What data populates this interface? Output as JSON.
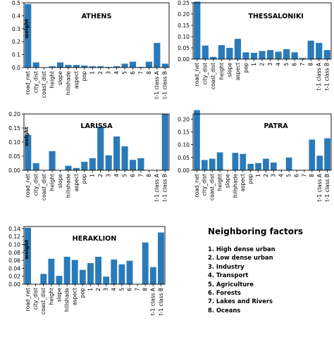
{
  "chart_data": [
    {
      "type": "bar",
      "title": "ATHENS",
      "ylabel": "weight",
      "ylim": [
        0,
        0.5
      ],
      "yticks": [
        "0.0",
        "0.1",
        "0.2",
        "0.3",
        "0.4",
        "0.5"
      ],
      "categories": [
        "road_net",
        "city_dist",
        "coast_dist",
        "height",
        "slope",
        "hillshade",
        "aspect",
        "pop",
        "1",
        "2",
        "3",
        "4",
        "5",
        "6",
        "7",
        "8",
        "t-1 class A",
        "t-1 class B"
      ],
      "values": [
        0.49,
        0.04,
        0.0,
        0.01,
        0.04,
        0.02,
        0.02,
        0.015,
        0.01,
        0.01,
        0.005,
        0.01,
        0.03,
        0.045,
        0.005,
        0.045,
        0.19,
        0.03
      ],
      "color": "#2a7ab9"
    },
    {
      "type": "bar",
      "title": "THESSALONIKI",
      "ylabel": "",
      "ylim": [
        0,
        0.25
      ],
      "yticks": [
        "0.00",
        "0.05",
        "0.10",
        "0.15",
        "0.20",
        "0.25"
      ],
      "categories": [
        "road_net",
        "city_dist",
        "coast_dist",
        "height",
        "slope",
        "aspect",
        "pop",
        "1",
        "2",
        "3",
        "4",
        "5",
        "6",
        "7",
        "8",
        "t-1 class A",
        "t-1 class B"
      ],
      "values": [
        0.255,
        0.06,
        0.01,
        0.062,
        0.05,
        0.09,
        0.03,
        0.028,
        0.036,
        0.04,
        0.033,
        0.044,
        0.03,
        0.005,
        0.082,
        0.072,
        0.04
      ],
      "color": "#2a7ab9"
    },
    {
      "type": "bar",
      "title": "LARISSA",
      "ylabel": "weight",
      "ylim": [
        0,
        0.2
      ],
      "yticks": [
        "0.00",
        "0.05",
        "0.10",
        "0.15",
        "0.20"
      ],
      "categories": [
        "road_net",
        "city_dist",
        "coast_dist",
        "height",
        "slope",
        "hillshade",
        "aspect",
        "pop",
        "1",
        "2",
        "3",
        "4",
        "5",
        "6",
        "7",
        "8",
        "t-1 class A",
        "t-1 class B"
      ],
      "values": [
        0.125,
        0.025,
        0.0,
        0.068,
        0.0,
        0.016,
        0.008,
        0.03,
        0.043,
        0.155,
        0.053,
        0.12,
        0.085,
        0.037,
        0.043,
        0.0,
        0.0,
        0.2
      ],
      "color": "#2a7ab9"
    },
    {
      "type": "bar",
      "title": "PATRA",
      "ylabel": "",
      "ylim": [
        0,
        0.22
      ],
      "yticks": [
        "0.00",
        "0.05",
        "0.10",
        "0.15",
        "0.20"
      ],
      "categories": [
        "road_net",
        "city_dist",
        "coast_dist",
        "height",
        "slope",
        "hillshade",
        "aspect",
        "pop",
        "1",
        "2",
        "3",
        "4",
        "5",
        "6",
        "7",
        "8",
        "t-1 class A",
        "t-1 class B"
      ],
      "values": [
        0.235,
        0.04,
        0.045,
        0.07,
        0.0,
        0.068,
        0.064,
        0.025,
        0.028,
        0.045,
        0.03,
        0.0,
        0.05,
        0.0,
        0.0,
        0.12,
        0.057,
        0.125
      ],
      "color": "#2a7ab9"
    },
    {
      "type": "bar",
      "title": "HERAKLION",
      "ylabel": "weight",
      "ylim": [
        0,
        0.145
      ],
      "yticks": [
        "0.00",
        "0.02",
        "0.04",
        "0.06",
        "0.08",
        "0.10",
        "0.12",
        "0.14"
      ],
      "categories": [
        "road_net",
        "city_dist",
        "coast_dist",
        "height",
        "slope",
        "hillshade",
        "aspect",
        "pop",
        "1",
        "2",
        "3",
        "4",
        "5",
        "6",
        "7",
        "8",
        "t-1 class A",
        "t-1 class B"
      ],
      "values": [
        0.142,
        0.0,
        0.026,
        0.064,
        0.021,
        0.069,
        0.061,
        0.036,
        0.053,
        0.069,
        0.019,
        0.062,
        0.05,
        0.059,
        0.0,
        0.105,
        0.043,
        0.13
      ],
      "color": "#2a7ab9"
    }
  ],
  "legend": {
    "title": "Neighboring factors",
    "items": [
      "1. High dense urban",
      "2. Low dense urban",
      "3. Industry",
      "4. Transport",
      "5. Agriculture",
      "6. Forests",
      "7. Lakes and Rivers",
      "8. Oceans"
    ]
  }
}
